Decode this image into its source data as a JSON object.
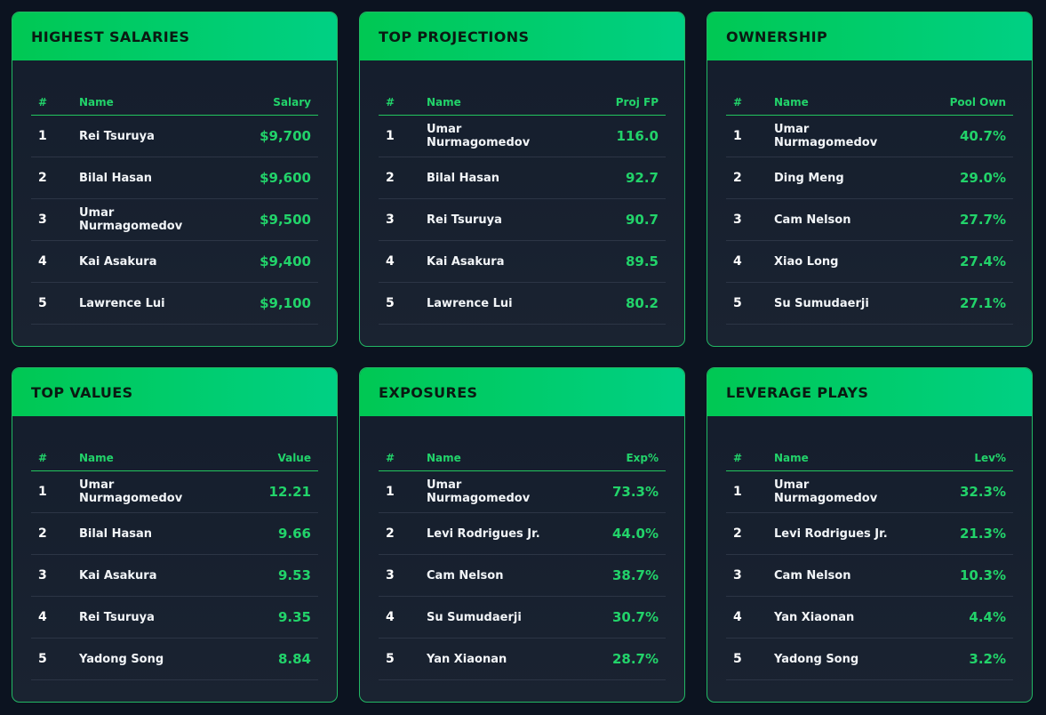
{
  "panels": [
    {
      "title": "HIGHEST SALARIES",
      "columns": [
        "#",
        "Name",
        "Salary"
      ],
      "rows": [
        {
          "rank": "1",
          "name": "Rei Tsuruya",
          "value": "$9,700"
        },
        {
          "rank": "2",
          "name": "Bilal Hasan",
          "value": "$9,600"
        },
        {
          "rank": "3",
          "name": "Umar Nurmagomedov",
          "value": "$9,500"
        },
        {
          "rank": "4",
          "name": "Kai Asakura",
          "value": "$9,400"
        },
        {
          "rank": "5",
          "name": "Lawrence Lui",
          "value": "$9,100"
        }
      ]
    },
    {
      "title": "TOP PROJECTIONS",
      "columns": [
        "#",
        "Name",
        "Proj FP"
      ],
      "rows": [
        {
          "rank": "1",
          "name": "Umar Nurmagomedov",
          "value": "116.0"
        },
        {
          "rank": "2",
          "name": "Bilal Hasan",
          "value": "92.7"
        },
        {
          "rank": "3",
          "name": "Rei Tsuruya",
          "value": "90.7"
        },
        {
          "rank": "4",
          "name": "Kai Asakura",
          "value": "89.5"
        },
        {
          "rank": "5",
          "name": "Lawrence Lui",
          "value": "80.2"
        }
      ]
    },
    {
      "title": "OWNERSHIP",
      "columns": [
        "#",
        "Name",
        "Pool Own"
      ],
      "rows": [
        {
          "rank": "1",
          "name": "Umar Nurmagomedov",
          "value": "40.7%"
        },
        {
          "rank": "2",
          "name": "Ding Meng",
          "value": "29.0%"
        },
        {
          "rank": "3",
          "name": "Cam Nelson",
          "value": "27.7%"
        },
        {
          "rank": "4",
          "name": "Xiao Long",
          "value": "27.4%"
        },
        {
          "rank": "5",
          "name": "Su Sumudaerji",
          "value": "27.1%"
        }
      ]
    },
    {
      "title": "TOP VALUES",
      "columns": [
        "#",
        "Name",
        "Value"
      ],
      "rows": [
        {
          "rank": "1",
          "name": "Umar Nurmagomedov",
          "value": "12.21"
        },
        {
          "rank": "2",
          "name": "Bilal Hasan",
          "value": "9.66"
        },
        {
          "rank": "3",
          "name": "Kai Asakura",
          "value": "9.53"
        },
        {
          "rank": "4",
          "name": "Rei Tsuruya",
          "value": "9.35"
        },
        {
          "rank": "5",
          "name": "Yadong Song",
          "value": "8.84"
        }
      ]
    },
    {
      "title": "EXPOSURES",
      "columns": [
        "#",
        "Name",
        "Exp%"
      ],
      "rows": [
        {
          "rank": "1",
          "name": "Umar Nurmagomedov",
          "value": "73.3%"
        },
        {
          "rank": "2",
          "name": "Levi Rodrigues Jr.",
          "value": "44.0%"
        },
        {
          "rank": "3",
          "name": "Cam Nelson",
          "value": "38.7%"
        },
        {
          "rank": "4",
          "name": "Su Sumudaerji",
          "value": "30.7%"
        },
        {
          "rank": "5",
          "name": "Yan Xiaonan",
          "value": "28.7%"
        }
      ]
    },
    {
      "title": "LEVERAGE PLAYS",
      "columns": [
        "#",
        "Name",
        "Lev%"
      ],
      "rows": [
        {
          "rank": "1",
          "name": "Umar Nurmagomedov",
          "value": "32.3%"
        },
        {
          "rank": "2",
          "name": "Levi Rodrigues Jr.",
          "value": "21.3%"
        },
        {
          "rank": "3",
          "name": "Cam Nelson",
          "value": "10.3%"
        },
        {
          "rank": "4",
          "name": "Yan Xiaonan",
          "value": "4.4%"
        },
        {
          "rank": "5",
          "name": "Yadong Song",
          "value": "3.2%"
        }
      ]
    }
  ],
  "colors": {
    "accent": "#00c853",
    "background": "#0c1320",
    "card": "#172030",
    "value_text": "#22d36a"
  }
}
